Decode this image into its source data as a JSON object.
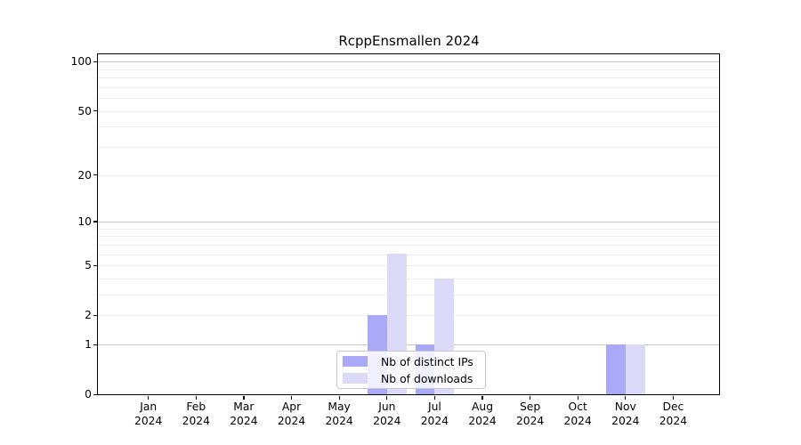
{
  "title": "RcppEnsmallen 2024",
  "colors": {
    "distinct_ips_bar": "#a9a9f7",
    "downloads_bar": "#dbdbf9",
    "grid_emphasized": "#c8c8c8",
    "grid_minor": "#eeeeee",
    "axis": "#000000",
    "legend_border": "#c9c9c9"
  },
  "chart_data": {
    "type": "bar",
    "title": "RcppEnsmallen 2024",
    "grid": "horizontal",
    "legend_position": "bottom-center",
    "x_axis": {
      "months": [
        "Jan",
        "Feb",
        "Mar",
        "Apr",
        "May",
        "Jun",
        "Jul",
        "Aug",
        "Sep",
        "Oct",
        "Nov",
        "Dec"
      ],
      "year": "2024"
    },
    "y_axis": {
      "scale": "log1p",
      "labeled_ticks": [
        0,
        1,
        2,
        5,
        10,
        20,
        50,
        100
      ],
      "minor_gridlines": [
        3,
        4,
        6,
        7,
        8,
        9,
        30,
        40,
        60,
        70,
        80,
        90
      ],
      "emphasized_gridlines": [
        1,
        10,
        100
      ],
      "max": 111
    },
    "series": [
      {
        "name": "Nb of distinct IPs",
        "color": "#a9a9f7",
        "values": [
          0,
          0,
          0,
          0,
          0,
          2,
          1,
          0,
          0,
          0,
          1,
          0
        ]
      },
      {
        "name": "Nb of downloads",
        "color": "#dbdbf9",
        "values": [
          0,
          0,
          0,
          0,
          0,
          6,
          4,
          0,
          0,
          0,
          1,
          0
        ]
      }
    ]
  }
}
